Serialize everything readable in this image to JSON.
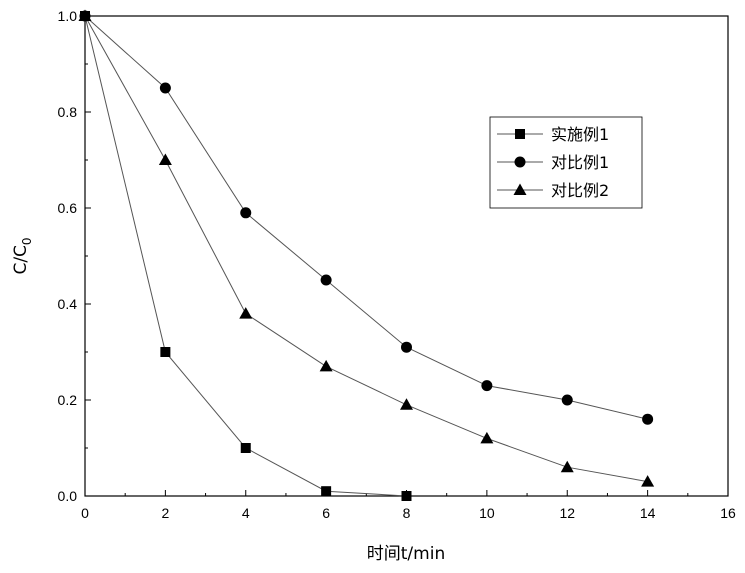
{
  "chart_data": {
    "type": "line",
    "title": "",
    "xlabel": "时间t/min",
    "ylabel_main": "C/C",
    "ylabel_sub": "0",
    "xlim": [
      0,
      16
    ],
    "ylim": [
      0,
      1.0
    ],
    "x_ticks": [
      "0",
      "2",
      "4",
      "6",
      "8",
      "10",
      "12",
      "14",
      "16"
    ],
    "y_ticks": [
      "0.0",
      "0.2",
      "0.4",
      "0.6",
      "0.8",
      "1.0"
    ],
    "grid": false,
    "legend_position": "top-right",
    "series": [
      {
        "name": "实施例1",
        "marker": "square",
        "color": "#000000",
        "x": [
          0,
          2,
          4,
          6,
          8
        ],
        "y": [
          1.0,
          0.3,
          0.1,
          0.01,
          0.0
        ]
      },
      {
        "name": "对比例1",
        "marker": "circle",
        "color": "#000000",
        "x": [
          0,
          2,
          4,
          6,
          8,
          10,
          12,
          14
        ],
        "y": [
          1.0,
          0.85,
          0.59,
          0.45,
          0.31,
          0.23,
          0.2,
          0.16
        ]
      },
      {
        "name": "对比例2",
        "marker": "triangle",
        "color": "#000000",
        "x": [
          0,
          2,
          4,
          6,
          8,
          10,
          12,
          14
        ],
        "y": [
          1.0,
          0.7,
          0.38,
          0.27,
          0.19,
          0.12,
          0.06,
          0.03
        ]
      }
    ]
  }
}
